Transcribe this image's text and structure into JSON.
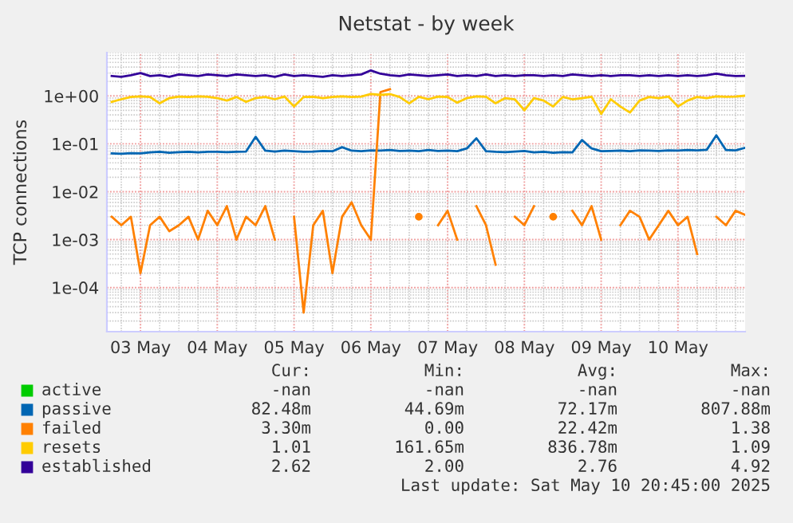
{
  "chart_data": {
    "type": "line",
    "title": "Netstat - by week",
    "ylabel": "TCP connections",
    "log": "y",
    "grid": true,
    "legend": "bottom",
    "ylim": [
      1.2e-05,
      8
    ],
    "yticks": [
      {
        "value": 0.0001,
        "label": "1e-04"
      },
      {
        "value": 0.001,
        "label": "1e-03"
      },
      {
        "value": 0.01,
        "label": "1e-02"
      },
      {
        "value": 0.1,
        "label": "1e-01"
      },
      {
        "value": 1,
        "label": "1e+00"
      }
    ],
    "xlim": [
      "2025-05-02T13:30",
      "2025-05-10T21:00"
    ],
    "xticks": [
      {
        "value": "2025-05-03",
        "label": "03 May"
      },
      {
        "value": "2025-05-04",
        "label": "04 May"
      },
      {
        "value": "2025-05-05",
        "label": "05 May"
      },
      {
        "value": "2025-05-06",
        "label": "06 May"
      },
      {
        "value": "2025-05-07",
        "label": "07 May"
      },
      {
        "value": "2025-05-08",
        "label": "08 May"
      },
      {
        "value": "2025-05-09",
        "label": "09 May"
      },
      {
        "value": "2025-05-10",
        "label": "10 May"
      }
    ],
    "x": [
      "2025-05-02T15:00",
      "2025-05-02T18:00",
      "2025-05-02T21:00",
      "2025-05-03T00:00",
      "2025-05-03T03:00",
      "2025-05-03T06:00",
      "2025-05-03T09:00",
      "2025-05-03T12:00",
      "2025-05-03T15:00",
      "2025-05-03T18:00",
      "2025-05-03T21:00",
      "2025-05-04T00:00",
      "2025-05-04T03:00",
      "2025-05-04T06:00",
      "2025-05-04T09:00",
      "2025-05-04T12:00",
      "2025-05-04T15:00",
      "2025-05-04T18:00",
      "2025-05-04T21:00",
      "2025-05-05T00:00",
      "2025-05-05T03:00",
      "2025-05-05T06:00",
      "2025-05-05T09:00",
      "2025-05-05T12:00",
      "2025-05-05T15:00",
      "2025-05-05T18:00",
      "2025-05-05T21:00",
      "2025-05-06T00:00",
      "2025-05-06T03:00",
      "2025-05-06T06:00",
      "2025-05-06T09:00",
      "2025-05-06T12:00",
      "2025-05-06T15:00",
      "2025-05-06T18:00",
      "2025-05-06T21:00",
      "2025-05-07T00:00",
      "2025-05-07T03:00",
      "2025-05-07T06:00",
      "2025-05-07T09:00",
      "2025-05-07T12:00",
      "2025-05-07T15:00",
      "2025-05-07T18:00",
      "2025-05-07T21:00",
      "2025-05-08T00:00",
      "2025-05-08T03:00",
      "2025-05-08T06:00",
      "2025-05-08T09:00",
      "2025-05-08T12:00",
      "2025-05-08T15:00",
      "2025-05-08T18:00",
      "2025-05-08T21:00",
      "2025-05-09T00:00",
      "2025-05-09T03:00",
      "2025-05-09T06:00",
      "2025-05-09T09:00",
      "2025-05-09T12:00",
      "2025-05-09T15:00",
      "2025-05-09T18:00",
      "2025-05-09T21:00",
      "2025-05-10T00:00",
      "2025-05-10T03:00",
      "2025-05-10T06:00",
      "2025-05-10T09:00",
      "2025-05-10T12:00",
      "2025-05-10T15:00",
      "2025-05-10T18:00",
      "2025-05-10T21:00"
    ],
    "series": [
      {
        "name": "active",
        "color": "#00cc00",
        "values": [
          null,
          null,
          null,
          null,
          null,
          null,
          null,
          null,
          null,
          null,
          null,
          null,
          null,
          null,
          null,
          null,
          null,
          null,
          null,
          null,
          null,
          null,
          null,
          null,
          null,
          null,
          null,
          null,
          null,
          null,
          null,
          null,
          null,
          null,
          null,
          null,
          null,
          null,
          null,
          null,
          null,
          null,
          null,
          null,
          null,
          null,
          null,
          null,
          null,
          null,
          null,
          null,
          null,
          null,
          null,
          null,
          null,
          null,
          null,
          null,
          null,
          null,
          null,
          null,
          null,
          null,
          null
        ]
      },
      {
        "name": "passive",
        "color": "#0066b3",
        "values": [
          0.063,
          0.062,
          0.064,
          0.063,
          0.066,
          0.068,
          0.065,
          0.067,
          0.068,
          0.066,
          0.068,
          0.068,
          0.067,
          0.068,
          0.069,
          0.14,
          0.072,
          0.069,
          0.072,
          0.07,
          0.068,
          0.069,
          0.071,
          0.07,
          0.085,
          0.072,
          0.07,
          0.073,
          0.072,
          0.074,
          0.071,
          0.072,
          0.07,
          0.074,
          0.071,
          0.072,
          0.07,
          0.08,
          0.13,
          0.07,
          0.068,
          0.067,
          0.069,
          0.071,
          0.066,
          0.068,
          0.065,
          0.067,
          0.066,
          0.12,
          0.08,
          0.07,
          0.071,
          0.072,
          0.07,
          0.073,
          0.072,
          0.071,
          0.073,
          0.072,
          0.074,
          0.073,
          0.075,
          0.15,
          0.074,
          0.073,
          0.0825
        ]
      },
      {
        "name": "failed",
        "color": "#ff8000",
        "values": [
          0.003,
          0.002,
          0.003,
          0.0002,
          0.002,
          0.003,
          0.0015,
          0.002,
          0.003,
          0.001,
          0.004,
          0.002,
          0.005,
          0.001,
          0.003,
          0.002,
          0.005,
          0.001,
          null,
          0.003,
          3e-05,
          0.002,
          0.004,
          0.0002,
          0.003,
          0.006,
          0.002,
          0.001,
          1.2,
          1.38,
          null,
          null,
          0.003,
          null,
          0.002,
          0.004,
          0.001,
          null,
          0.005,
          0.002,
          0.0003,
          null,
          0.003,
          0.002,
          0.005,
          null,
          0.003,
          null,
          0.004,
          0.002,
          0.005,
          0.001,
          null,
          0.002,
          0.004,
          0.003,
          0.001,
          0.002,
          0.004,
          0.002,
          0.003,
          0.0005,
          null,
          0.003,
          0.002,
          0.004,
          0.0033
        ]
      },
      {
        "name": "resets",
        "color": "#ffcc00",
        "values": [
          0.75,
          0.85,
          0.95,
          0.98,
          0.95,
          0.7,
          0.9,
          0.97,
          0.95,
          0.98,
          0.96,
          0.9,
          0.8,
          0.95,
          0.75,
          0.9,
          0.95,
          0.85,
          0.97,
          0.6,
          0.95,
          0.96,
          0.9,
          0.95,
          0.98,
          0.95,
          0.97,
          1.1,
          1.05,
          1.09,
          0.95,
          0.7,
          0.96,
          0.85,
          0.97,
          0.95,
          0.72,
          0.9,
          0.98,
          0.96,
          0.7,
          0.9,
          0.85,
          0.5,
          0.9,
          0.8,
          0.6,
          0.95,
          0.85,
          0.9,
          0.96,
          0.42,
          0.85,
          0.6,
          0.45,
          0.8,
          0.95,
          0.9,
          0.97,
          0.6,
          0.8,
          0.95,
          0.9,
          0.98,
          0.96,
          0.97,
          1.01
        ]
      },
      {
        "name": "established",
        "color": "#330099",
        "values": [
          2.6,
          2.5,
          2.7,
          3.0,
          2.6,
          2.7,
          2.5,
          2.8,
          2.7,
          2.6,
          2.8,
          2.7,
          2.6,
          2.8,
          2.7,
          2.6,
          2.7,
          2.5,
          2.8,
          2.6,
          2.7,
          2.6,
          2.5,
          2.7,
          2.6,
          2.7,
          2.8,
          3.4,
          2.9,
          2.7,
          2.6,
          2.8,
          2.7,
          2.6,
          2.7,
          2.8,
          2.6,
          2.7,
          2.6,
          2.8,
          2.6,
          2.7,
          2.6,
          2.7,
          2.7,
          2.6,
          2.7,
          2.6,
          2.8,
          2.7,
          2.6,
          2.7,
          2.6,
          2.7,
          2.7,
          2.6,
          2.7,
          2.6,
          2.7,
          2.6,
          2.7,
          2.6,
          2.7,
          2.9,
          2.7,
          2.6,
          2.62
        ]
      }
    ],
    "annotations": [
      "Cur:",
      "Min:",
      "Avg:",
      "Max:",
      "-nan",
      "-nan",
      "-nan",
      "-nan",
      "82.48m",
      "44.69m",
      "72.17m",
      "807.88m",
      "3.30m",
      "0.00",
      "22.42m",
      "1.38",
      "1.01",
      "161.65m",
      "836.78m",
      "1.09",
      "2.62",
      "2.00",
      "2.76",
      "4.92",
      "Last update: Sat May 10 20:45:00 2025"
    ]
  }
}
